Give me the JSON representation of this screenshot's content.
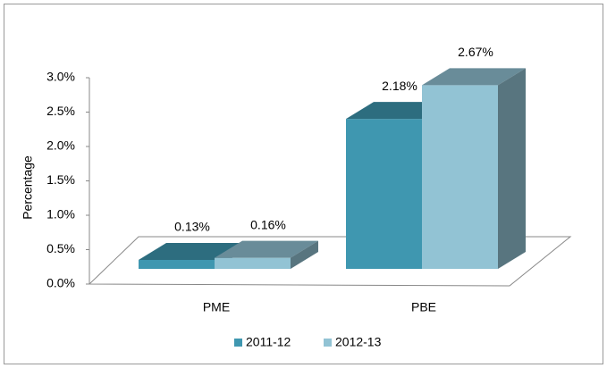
{
  "chart_data": {
    "type": "bar3d",
    "y_label": "Percentage",
    "categories": [
      "PME",
      "PBE"
    ],
    "series": [
      {
        "name": "2011-12",
        "color": "#3f97b0",
        "values": [
          0.13,
          2.18
        ],
        "value_labels": [
          "0.13%",
          "2.18%"
        ]
      },
      {
        "name": "2012-13",
        "color": "#92c3d4",
        "values": [
          0.16,
          2.67
        ],
        "value_labels": [
          "0.16%",
          "2.67%"
        ]
      }
    ],
    "ylim": [
      0,
      3
    ],
    "yticks": [
      {
        "value": 0,
        "label": "0.0%"
      },
      {
        "value": 0.5,
        "label": "0.5%"
      },
      {
        "value": 1,
        "label": "1.0%"
      },
      {
        "value": 1.5,
        "label": "1.5%"
      },
      {
        "value": 2,
        "label": "2.0%"
      },
      {
        "value": 2.5,
        "label": "2.5%"
      },
      {
        "value": 3,
        "label": "3.0%"
      }
    ],
    "legend": "bottom"
  }
}
